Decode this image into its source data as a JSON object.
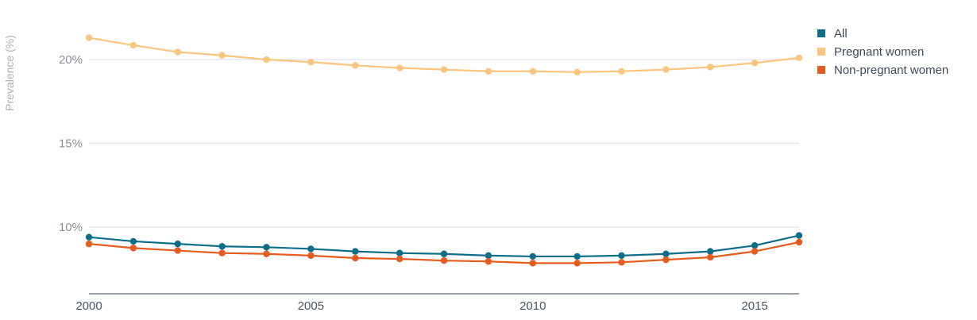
{
  "chart_data": {
    "type": "line",
    "title": "",
    "xlabel": "",
    "ylabel": "Prevalence (%)",
    "xlim": [
      2000,
      2016
    ],
    "ylim": [
      6.0,
      22.5
    ],
    "yticks": [
      10,
      15,
      20
    ],
    "ytick_labels": [
      "10%",
      "15%",
      "20%"
    ],
    "xticks": [
      2000,
      2005,
      2010,
      2015
    ],
    "xtick_labels": [
      "2000",
      "2005",
      "2010",
      "2015"
    ],
    "grid": true,
    "legend_position": "top-right",
    "x": [
      2000,
      2001,
      2002,
      2003,
      2004,
      2005,
      2006,
      2007,
      2008,
      2009,
      2010,
      2011,
      2012,
      2013,
      2014,
      2015,
      2016
    ],
    "series": [
      {
        "name": "All",
        "color": "#0e6e8a",
        "values": [
          9.4,
          9.15,
          9.0,
          8.85,
          8.8,
          8.7,
          8.55,
          8.45,
          8.4,
          8.3,
          8.25,
          8.25,
          8.3,
          8.4,
          8.55,
          8.9,
          9.5
        ]
      },
      {
        "name": "Pregnant women",
        "color": "#fcc57e",
        "values": [
          21.3,
          20.85,
          20.45,
          20.25,
          20.0,
          19.85,
          19.65,
          19.5,
          19.4,
          19.3,
          19.3,
          19.25,
          19.3,
          19.4,
          19.55,
          19.8,
          20.1
        ]
      },
      {
        "name": "Non-pregnant women",
        "color": "#e65c1f",
        "values": [
          9.0,
          8.75,
          8.6,
          8.45,
          8.4,
          8.3,
          8.15,
          8.1,
          8.0,
          7.95,
          7.85,
          7.85,
          7.9,
          8.05,
          8.2,
          8.55,
          9.1
        ]
      }
    ]
  }
}
